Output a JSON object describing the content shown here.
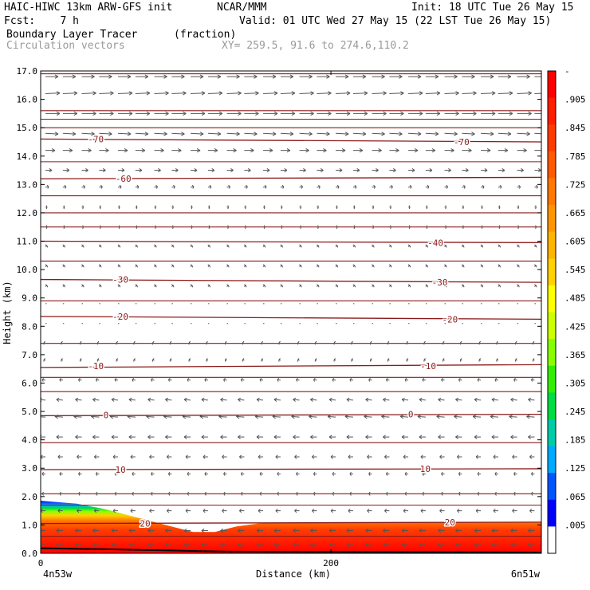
{
  "header": {
    "title": "HAIC-HIWC 13km ARW-GFS init",
    "org": "NCAR/MMM",
    "init": "Init: 18 UTC Tue 26 May 15",
    "fcst": "Fcst:    7 h",
    "valid": "Valid: 01 UTC Wed 27 May 15 (22 LST Tue 26 May 15)",
    "field1": "Boundary Layer Tracer",
    "field1_unit": "(fraction)",
    "field2": "Circulation vectors",
    "xy": "XY= 259.5, 91.6 to 274.6,110.2"
  },
  "chart_data": {
    "type": "cross-section",
    "xlabel": "Distance (km)",
    "ylabel": "Height (km)",
    "xlim": [
      0,
      345
    ],
    "ylim": [
      0,
      17
    ],
    "x_ticks": [
      {
        "value": 0,
        "label": "0"
      },
      {
        "value": 200,
        "label": "200"
      }
    ],
    "x_end_labels": {
      "left": "4n53w",
      "right": "6n51w"
    },
    "y_ticks": [
      "0.0",
      "1.0",
      "2.0",
      "3.0",
      "4.0",
      "5.0",
      "6.0",
      "7.0",
      "8.0",
      "9.0",
      "10.0",
      "11.0",
      "12.0",
      "13.0",
      "14.0",
      "15.0",
      "16.0",
      "17.0"
    ],
    "colorbar": {
      "labels": [
        "-",
        ".905",
        ".845",
        ".785",
        ".725",
        ".665",
        ".605",
        ".545",
        ".485",
        ".425",
        ".365",
        ".305",
        ".245",
        ".185",
        ".125",
        ".065",
        ".005"
      ],
      "colors": [
        "#ff0000",
        "#ff1e00",
        "#ff3c00",
        "#ff5a00",
        "#ff7800",
        "#ff9600",
        "#ffb400",
        "#ffd200",
        "#ffff00",
        "#ccff00",
        "#88ff00",
        "#33ee00",
        "#00dd44",
        "#00ccaa",
        "#00aaff",
        "#0055ff",
        "#0000ff",
        "#ffffff"
      ]
    },
    "temperature_contours": [
      {
        "label": "20",
        "heights": [
          1.05,
          1.1
        ]
      },
      {
        "label": "10",
        "heights": [
          2.95,
          2.98
        ]
      },
      {
        "label": "0",
        "heights": [
          4.85,
          4.9
        ]
      },
      {
        "label": "-10",
        "heights": [
          6.55,
          6.65
        ]
      },
      {
        "label": "-20",
        "heights": [
          8.35,
          8.25
        ]
      },
      {
        "label": "-30",
        "heights": [
          9.65,
          9.55
        ]
      },
      {
        "label": "-40",
        "heights": [
          11.0,
          10.95
        ]
      },
      {
        "label": "-60",
        "heights": [
          13.2,
          13.25
        ]
      },
      {
        "label": "-70",
        "heights": [
          14.6,
          14.5
        ]
      }
    ],
    "unlabeled_contour_heights": [
      0.6,
      1.7,
      2.1,
      3.9,
      5.7,
      6.2,
      7.4,
      8.9,
      10.3,
      11.5,
      12.0,
      12.6,
      13.8,
      15.0,
      15.3,
      15.6,
      16.9
    ],
    "contour_labels": [
      {
        "text": "20",
        "x": 72,
        "y": 1.05
      },
      {
        "text": "20",
        "x": 282,
        "y": 1.1
      },
      {
        "text": "10",
        "x": 55,
        "y": 2.95
      },
      {
        "text": "10",
        "x": 265,
        "y": 2.98
      },
      {
        "text": "0",
        "x": 45,
        "y": 4.88
      },
      {
        "text": "0",
        "x": 255,
        "y": 4.9
      },
      {
        "text": "-10",
        "x": 38,
        "y": 6.6
      },
      {
        "text": "-10",
        "x": 267,
        "y": 6.6
      },
      {
        "text": "-20",
        "x": 55,
        "y": 8.35
      },
      {
        "text": "-20",
        "x": 282,
        "y": 8.25
      },
      {
        "text": "-30",
        "x": 55,
        "y": 9.65
      },
      {
        "text": "-30",
        "x": 275,
        "y": 9.55
      },
      {
        "text": "-40",
        "x": 272,
        "y": 10.95
      },
      {
        "text": "-60",
        "x": 57,
        "y": 13.2
      },
      {
        "text": "-70",
        "x": 38,
        "y": 14.6
      },
      {
        "text": "-70",
        "x": 290,
        "y": 14.5
      }
    ],
    "tracer_top": [
      [
        0,
        1.85
      ],
      [
        25,
        1.75
      ],
      [
        45,
        1.55
      ],
      [
        60,
        1.35
      ],
      [
        75,
        1.15
      ],
      [
        90,
        0.95
      ],
      [
        105,
        0.75
      ],
      [
        120,
        0.75
      ],
      [
        135,
        0.95
      ],
      [
        150,
        1.05
      ],
      [
        200,
        1.1
      ],
      [
        250,
        1.1
      ],
      [
        345,
        1.1
      ]
    ],
    "terrain": [
      [
        0,
        0.15
      ],
      [
        40,
        0.12
      ],
      [
        80,
        0.08
      ],
      [
        130,
        0.03
      ],
      [
        200,
        0.02
      ],
      [
        345,
        0.0
      ]
    ],
    "wind_rows": [
      {
        "z": 16.8,
        "u": 8,
        "w": 0.0
      },
      {
        "z": 16.2,
        "u": 9,
        "w": 0.1
      },
      {
        "z": 15.5,
        "u": 9,
        "w": 0.0
      },
      {
        "z": 14.8,
        "u": 8,
        "w": -0.1
      },
      {
        "z": 14.2,
        "u": 6,
        "w": 0.0
      },
      {
        "z": 13.5,
        "u": 4,
        "w": 0.0
      },
      {
        "z": 12.9,
        "u": 2,
        "w": 0.1
      },
      {
        "z": 12.2,
        "u": 1,
        "w": 0.0
      },
      {
        "z": 11.5,
        "u": 1,
        "w": 0.0
      },
      {
        "z": 10.8,
        "u": 1,
        "w": 0.2
      },
      {
        "z": 10.1,
        "u": 1,
        "w": 0.2
      },
      {
        "z": 9.4,
        "u": 1,
        "w": 0.2
      },
      {
        "z": 8.8,
        "u": 0,
        "w": 0.1
      },
      {
        "z": 8.1,
        "u": 0,
        "w": 0.1
      },
      {
        "z": 7.4,
        "u": -1,
        "w": 0.1
      },
      {
        "z": 6.8,
        "u": -1,
        "w": 0.1
      },
      {
        "z": 6.1,
        "u": -2,
        "w": 0.1
      },
      {
        "z": 5.4,
        "u": -4,
        "w": 0.1
      },
      {
        "z": 4.8,
        "u": -5,
        "w": 0.1
      },
      {
        "z": 4.1,
        "u": -4,
        "w": 0.0
      },
      {
        "z": 3.4,
        "u": -3,
        "w": 0.0
      },
      {
        "z": 2.8,
        "u": -2,
        "w": 0.0
      },
      {
        "z": 2.1,
        "u": -2,
        "w": 0.0
      },
      {
        "z": 1.5,
        "u": -3,
        "w": 0.0
      },
      {
        "z": 0.8,
        "u": -4,
        "w": 0.0
      },
      {
        "z": 0.3,
        "u": -4,
        "w": 0.0
      }
    ],
    "wind_columns_km": [
      0,
      12,
      25,
      37,
      50,
      62,
      75,
      87,
      100,
      112,
      125,
      137,
      150,
      162,
      175,
      187,
      200,
      212,
      225,
      237,
      250,
      262,
      275,
      287,
      300,
      312,
      325,
      337
    ]
  }
}
